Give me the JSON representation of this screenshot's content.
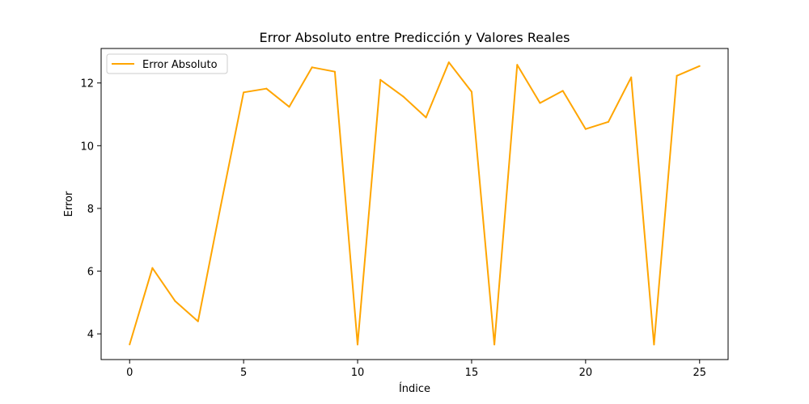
{
  "chart_data": {
    "type": "line",
    "title": "Error Absoluto entre Predicción y Valores Reales",
    "xlabel": "Índice",
    "ylabel": "Error",
    "xlim": [
      -1.25,
      26.25
    ],
    "ylim": [
      3.18,
      13.1
    ],
    "xticks": [
      0,
      5,
      10,
      15,
      20,
      25
    ],
    "yticks": [
      4,
      6,
      8,
      10,
      12
    ],
    "grid": false,
    "legend_position": "upper-left",
    "series": [
      {
        "name": "Error Absoluto",
        "color": "#ffa500",
        "x": [
          0,
          1,
          2,
          3,
          4,
          5,
          6,
          7,
          8,
          9,
          10,
          11,
          12,
          13,
          14,
          15,
          16,
          17,
          18,
          19,
          20,
          21,
          22,
          23,
          24,
          25
        ],
        "values": [
          3.66,
          6.1,
          5.04,
          4.4,
          8.1,
          11.7,
          11.82,
          11.24,
          12.5,
          12.36,
          3.66,
          12.1,
          11.57,
          10.9,
          12.66,
          11.72,
          3.66,
          12.58,
          11.36,
          11.75,
          10.53,
          10.76,
          12.18,
          3.66,
          12.23,
          12.54
        ]
      }
    ]
  }
}
